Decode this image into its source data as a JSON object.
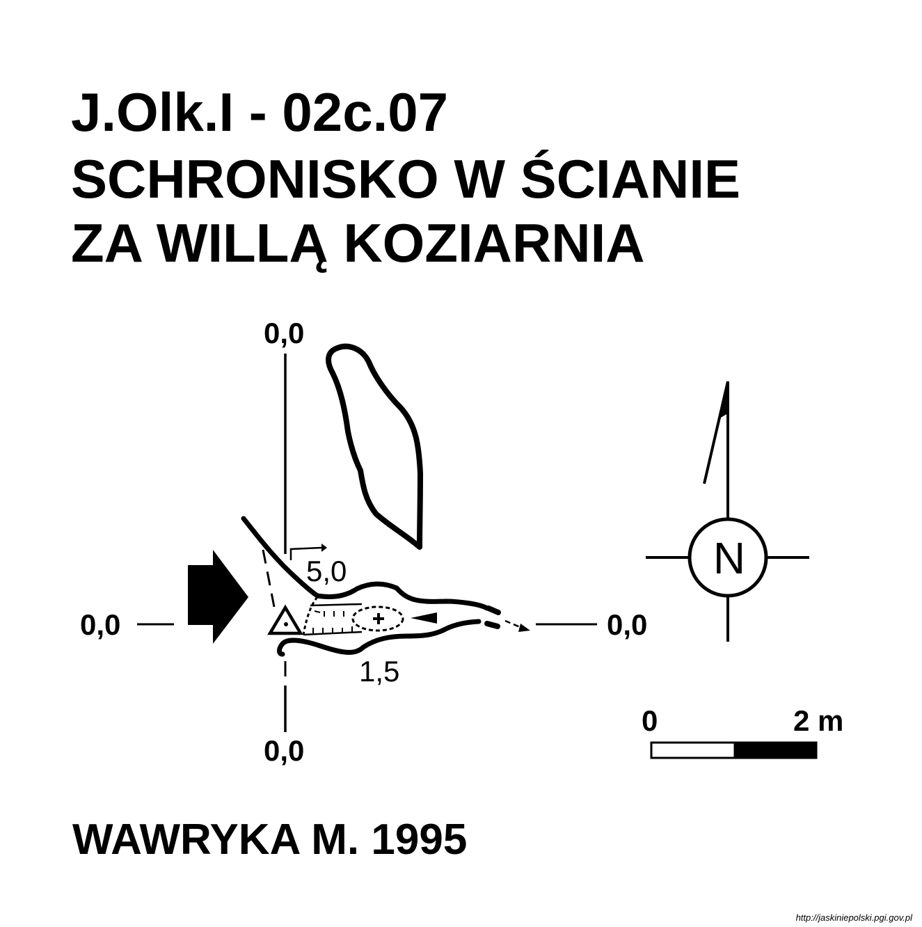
{
  "header": {
    "code": "J.Olk.I - 02c.07",
    "name_line1": "SCHRONISKO W ŚCIANIE",
    "name_line2": "ZA WILLĄ KOZIARNIA"
  },
  "section_markers": {
    "top": "0,0",
    "bottom": "0,0",
    "left": "0,0",
    "right": "0,0"
  },
  "depths": {
    "upper": "5,0",
    "lower": "1,5"
  },
  "compass": {
    "letter": "N"
  },
  "scale_bar": {
    "start_label": "0",
    "end_label": "2 m"
  },
  "credit": {
    "author": "WAWRYKA M. 1995"
  },
  "source_url": "http://jaskiniepolski.pgi.gov.pl",
  "icons": {
    "entrance": "entrance-arrow-icon",
    "survey_point": "survey-station-triangle-icon",
    "north": "north-arrow-icon"
  },
  "colors": {
    "ink": "#000000",
    "paper": "#ffffff"
  }
}
